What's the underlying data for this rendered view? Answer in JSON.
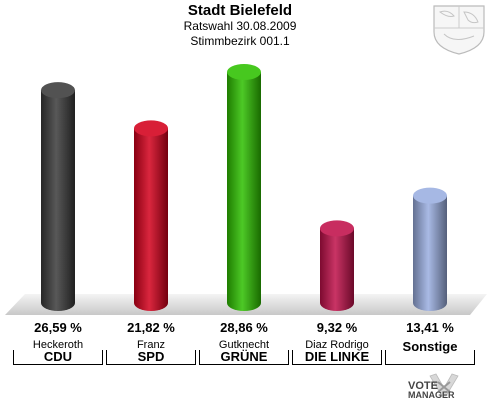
{
  "header": {
    "title": "Stadt Bielefeld",
    "subtitle": "Ratswahl 30.08.2009",
    "district": "Stimmbezirk 001.1"
  },
  "chart_data": {
    "type": "bar",
    "title": "Stadt Bielefeld",
    "subtitle": "Ratswahl 30.08.2009 · Stimmbezirk 001.1",
    "ylim": [
      0,
      30
    ],
    "grid": false,
    "legend": "none",
    "categories": [
      "CDU",
      "SPD",
      "GRÜNE",
      "DIE LINKE",
      "Sonstige"
    ],
    "candidates": [
      "Heckeroth",
      "Franz",
      "Gutknecht",
      "Diaz Rodrigo",
      ""
    ],
    "values": [
      26.59,
      21.82,
      28.86,
      9.32,
      13.41
    ],
    "labels": [
      "26,59 %",
      "21,82 %",
      "28,86 %",
      "9,32 %",
      "13,41 %"
    ],
    "colors": [
      "#3a3a3a",
      "#d3001c",
      "#2ec000",
      "#c0104a",
      "#9aaee0"
    ]
  },
  "footer": {
    "brand_line1": "VOTE",
    "brand_line2": "MANAGER"
  },
  "icons": {
    "crest": "nrw-coat-of-arms-icon",
    "logo": "votemanager-logo-icon"
  }
}
